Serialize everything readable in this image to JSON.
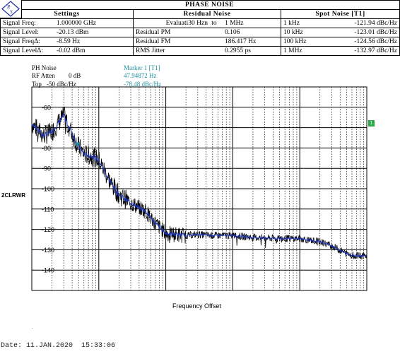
{
  "title": "PHASE NOISE",
  "header": {
    "settings_title": "Settings",
    "residual_title": "Residual Noise",
    "spot_title": "Spot Noise [T1]",
    "rows": [
      {
        "label": "Signal Freq:",
        "value": "1.000000 GHz",
        "res_label": "Evaluati30 Hzn",
        "res_mid": "to",
        "res_value": "1 MHz",
        "spot_freq": "1 kHz",
        "spot_value": "-121.94 dBc/Hz"
      },
      {
        "label": "Signal Level:",
        "value": "-20.13 dBm",
        "res_label": "Residual PM",
        "res_mid": "",
        "res_value": "0.106",
        "spot_freq": "10 kHz",
        "spot_value": "-123.01 dBc/Hz"
      },
      {
        "label": "Signal FreqΔ:",
        "value": "-8.59 Hz",
        "res_label": "Residual FM",
        "res_mid": "",
        "res_value": "186.417 Hz",
        "spot_freq": "100 kHz",
        "spot_value": "-124.56 dBc/Hz"
      },
      {
        "label": "Signal LevelΔ:",
        "value": "-0.02 dBm",
        "res_label": "RMS Jitter",
        "res_mid": "",
        "res_value": "0.2955 ps",
        "spot_freq": "1 MHz",
        "spot_value": "-132.97 dBc/Hz"
      }
    ]
  },
  "info": {
    "ph_noise": "PH Noise",
    "rf_atten_label": "RF Atten",
    "rf_atten_value": "0 dB",
    "top_label": "Top",
    "top_value": "-50 dBc/Hz",
    "marker_title": "Marker 1 [T1]",
    "marker_freq": "47.94872 Hz",
    "marker_level": "-78.48 dBc/Hz"
  },
  "trace_label": "2CLRWR",
  "right_marker": "1",
  "colors": {
    "trace_raw": "#000000",
    "trace_smooth": "#1a2fa0",
    "marker": "#1f8fa0"
  },
  "chart_data": {
    "type": "line",
    "x_scale": "log",
    "xlabel": "Frequency Offset",
    "ylabel": "",
    "xlim": [
      10,
      1000000
    ],
    "ylim": [
      -150,
      -50
    ],
    "yticks": [
      -60,
      -70,
      -80,
      -90,
      -100,
      -110,
      -120,
      -130,
      -140
    ],
    "grid": true,
    "series": [
      {
        "name": "",
        "x": [
          10,
          15,
          20,
          30,
          47.9,
          60,
          80,
          100,
          150,
          200,
          300,
          500,
          700,
          1000,
          2000,
          3000,
          5000,
          10000,
          20000,
          50000,
          100000,
          200000,
          300000,
          500000,
          700000,
          1000000
        ],
        "values": [
          -68,
          -74,
          -72,
          -64,
          -78.5,
          -83,
          -84,
          -86,
          -97,
          -103,
          -107,
          -111,
          -117,
          -121.9,
          -123,
          -122.5,
          -123,
          -123,
          -124,
          -124.5,
          -124.5,
          -126,
          -128,
          -132,
          -133,
          -133
        ]
      }
    ]
  },
  "footer": {
    "date": "Date: 11.JAN.2020  15:33:06"
  }
}
